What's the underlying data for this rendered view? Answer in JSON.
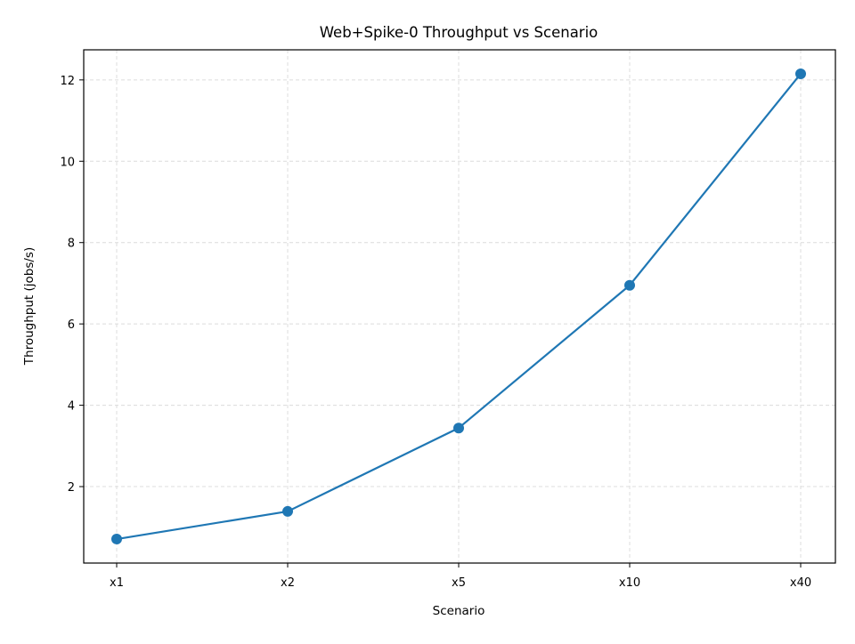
{
  "chart_data": {
    "type": "line",
    "title": "Web+Spike-0 Throughput vs Scenario",
    "xlabel": "Scenario",
    "ylabel": "Throughput (jobs/s)",
    "categories": [
      "x1",
      "x2",
      "x5",
      "x10",
      "x40"
    ],
    "series": [
      {
        "values": [
          0.71,
          1.39,
          3.44,
          6.95,
          12.15
        ],
        "color": "#1f77b4",
        "marker": "circle"
      }
    ],
    "ylim": [
      0.12,
      12.74
    ],
    "yticks": [
      2,
      4,
      6,
      8,
      10,
      12
    ],
    "grid": true,
    "grid_style": "dashed",
    "legend": "none"
  }
}
